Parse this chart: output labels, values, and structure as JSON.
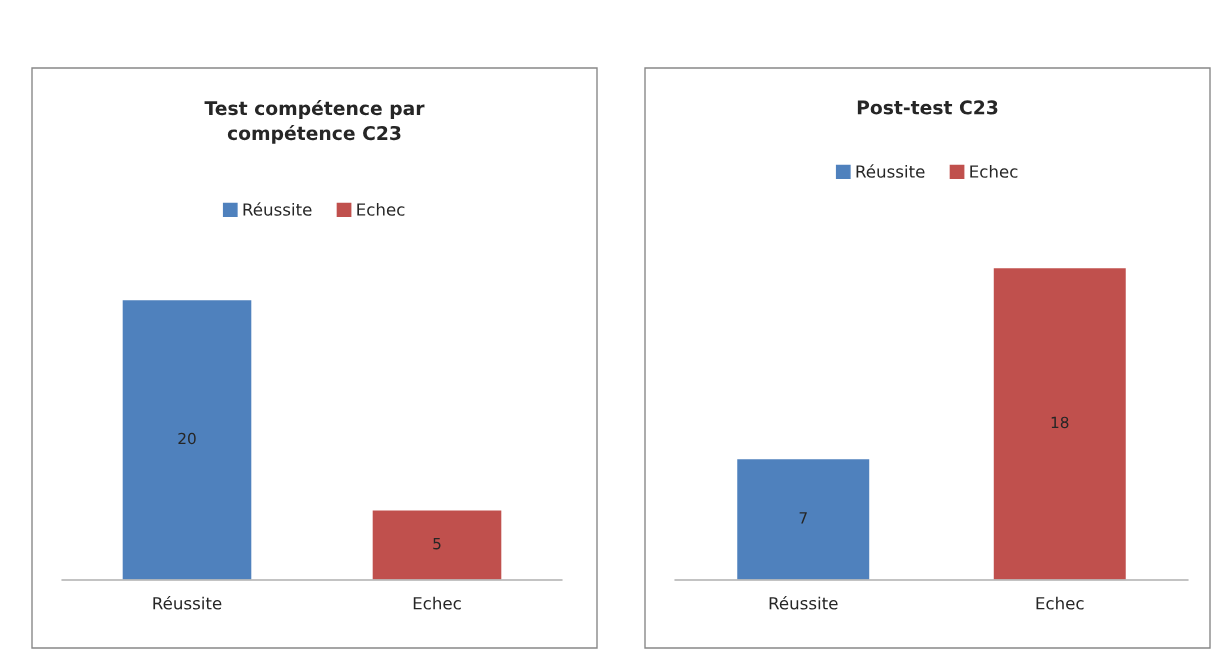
{
  "chart_data": [
    {
      "type": "bar",
      "title": "Test compétence par\ncompétence C23",
      "categories": [
        "Réussite",
        "Echec"
      ],
      "series": [
        {
          "name": "Réussite",
          "color": "#4f81bd",
          "values": [
            20,
            null
          ]
        },
        {
          "name": "Echec",
          "color": "#c0504d",
          "values": [
            null,
            5
          ]
        }
      ],
      "data_labels": true,
      "legend": "top",
      "grid": false,
      "tick_labels": "x"
    },
    {
      "type": "bar",
      "title": "Post-test C23",
      "categories": [
        "Réussite",
        "Echec"
      ],
      "series": [
        {
          "name": "Réussite",
          "color": "#4f81bd",
          "values": [
            7,
            null
          ]
        },
        {
          "name": "Echec",
          "color": "#c0504d",
          "values": [
            null,
            18
          ]
        }
      ],
      "data_labels": true,
      "legend": "top",
      "grid": false,
      "tick_labels": "x"
    }
  ]
}
